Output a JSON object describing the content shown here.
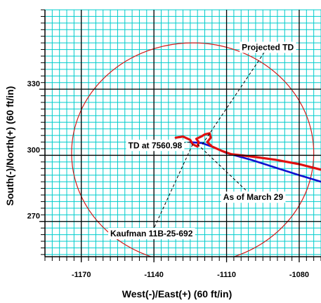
{
  "chart_data": {
    "type": "line",
    "xlabel": "West(-)/East(+) (60 ft/in)",
    "ylabel": "South(-)/North(+) (60 ft/in)",
    "xlim": [
      -1185,
      -1071
    ],
    "ylim": [
      254,
      366
    ],
    "x_ticks": [
      -1170,
      -1140,
      -1110,
      -1080
    ],
    "y_ticks": [
      270,
      300,
      330
    ],
    "grid": true,
    "grid_spacing_minor": 3,
    "colors": {
      "grid": "#00cccc",
      "circle": "#d11a1a",
      "red_path": "#e01010",
      "blue_path": "#1010d0",
      "leader": "#000000"
    },
    "circle": {
      "center": [
        -1124,
        301
      ],
      "radius": 50
    },
    "series": [
      {
        "color": "#1010d0",
        "points": [
          [
            -1125,
            306
          ],
          [
            -1120,
            305.5
          ],
          [
            -1115,
            303.5
          ],
          [
            -1110,
            301
          ],
          [
            -1100,
            298
          ],
          [
            -1090,
            294.5
          ],
          [
            -1080,
            291
          ],
          [
            -1071,
            288
          ]
        ]
      },
      {
        "color": "#e01010",
        "points": [
          [
            -1131,
            308
          ],
          [
            -1128,
            308.5
          ],
          [
            -1125,
            307
          ],
          [
            -1124,
            305
          ],
          [
            -1122,
            304
          ],
          [
            -1121.5,
            306
          ],
          [
            -1122.5,
            307.5
          ],
          [
            -1120.5,
            308.5
          ],
          [
            -1119,
            309.5
          ],
          [
            -1117,
            310
          ],
          [
            -1116.5,
            308
          ],
          [
            -1118,
            306
          ],
          [
            -1116,
            304
          ],
          [
            -1112,
            302
          ],
          [
            -1108,
            300.5
          ],
          [
            -1100,
            299.5
          ],
          [
            -1090,
            298
          ],
          [
            -1080,
            296
          ],
          [
            -1071,
            293.5
          ]
        ]
      }
    ],
    "annotations": [
      {
        "text": "Projected TD",
        "target": [
          -1120,
          305
        ],
        "label_at": [
          -1093,
          349
        ]
      },
      {
        "text": "TD at 7560.98",
        "target": [
          -1125,
          306
        ],
        "label_at": [
          -1139.5,
          304.5
        ]
      },
      {
        "text": "As of March 29",
        "target": [
          -1122,
          305
        ],
        "label_at": [
          -1099,
          281
        ]
      },
      {
        "text": "Kaufman 11B-25-692",
        "target": [
          -1124,
          305
        ],
        "label_at": [
          -1141,
          264.5
        ]
      }
    ]
  }
}
